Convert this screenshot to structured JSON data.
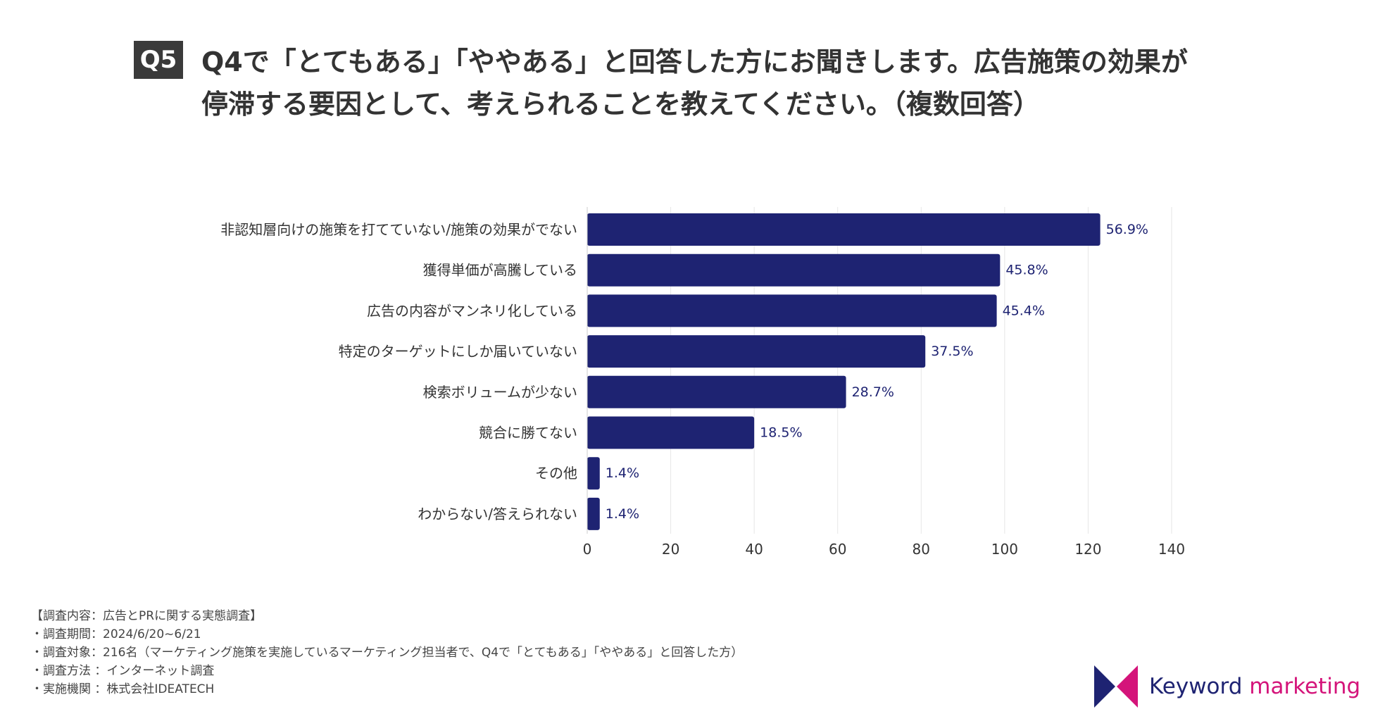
{
  "question": {
    "badge": "Q5",
    "line1": "Q4で「とてもある」「ややある」と回答した方にお聞きします。広告施策の効果が",
    "line2": "停滞する要因として、考えられることを教えてください。（複数回答）"
  },
  "chart_data": {
    "type": "bar",
    "orientation": "horizontal",
    "categories": [
      "非認知層向けの施策を打てていない/施策の効果がでない",
      "獲得単価が高騰している",
      "広告の内容がマンネリ化している",
      "特定のターゲットにしか届いていない",
      "検索ボリュームが少ない",
      "競合に勝てない",
      "その他",
      "わからない/答えられない"
    ],
    "values": [
      122.9,
      98.9,
      98.1,
      81.0,
      62.0,
      40.0,
      3.0,
      3.0
    ],
    "data_labels": [
      "56.9%",
      "45.8%",
      "45.4%",
      "37.5%",
      "28.7%",
      "18.5%",
      "1.4%",
      "1.4%"
    ],
    "xlim": [
      0,
      140
    ],
    "xticks": [
      0,
      20,
      40,
      60,
      80,
      100,
      120,
      140
    ],
    "grid": true,
    "bar_color": "#1e2372",
    "title": "",
    "xlabel": "",
    "ylabel": ""
  },
  "footnotes": [
    "【調査内容：広告とPRに関する実態調査】",
    "・調査期間：2024/6/20~6/21",
    "・調査対象：216名（マーケティング施策を実施しているマーケティング担当者で、Q4で「とてもある」「ややある」と回答した方）",
    "・調査方法 ：インターネット調査",
    "・実施機関 ：株式会社IDEATECH"
  ],
  "logo": {
    "word1": "Keyword",
    "word2": "marketing",
    "color1": "#1e2372",
    "color2": "#d4147a"
  }
}
